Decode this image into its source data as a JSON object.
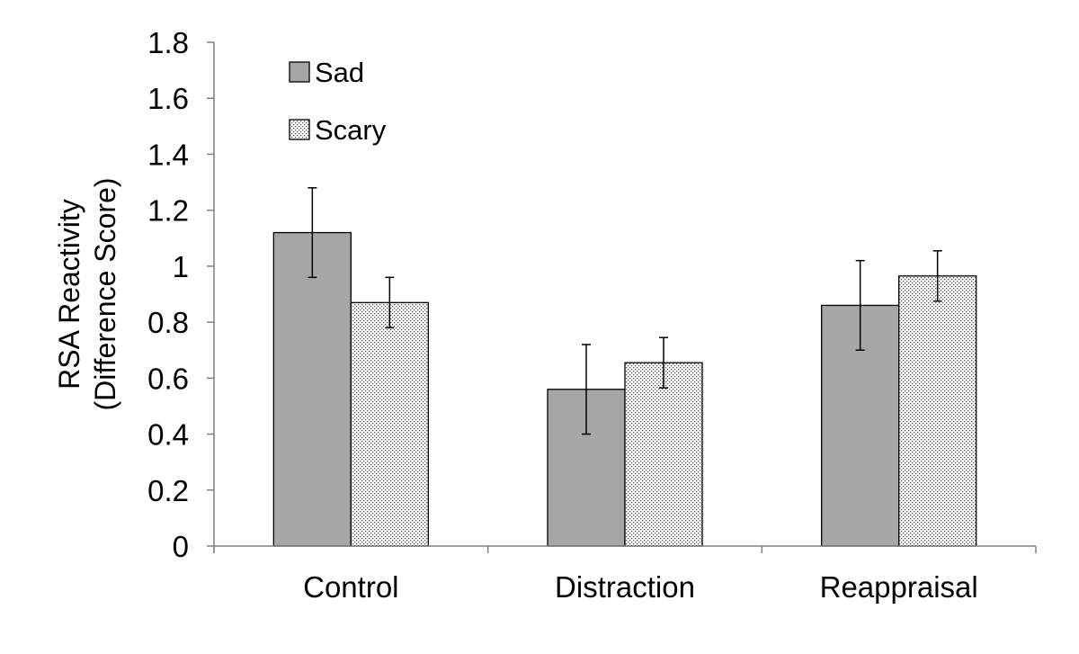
{
  "chart_data": {
    "type": "bar",
    "title": "",
    "xlabel": "",
    "ylabel_lines": [
      "RSA Reactivity",
      "(Difference Score)"
    ],
    "ylim": [
      0,
      1.8
    ],
    "ytick_step": 0.2,
    "ytick_labels": [
      "0",
      "0.2",
      "0.4",
      "0.6",
      "0.8",
      "1",
      "1.2",
      "1.4",
      "1.6",
      "1.8"
    ],
    "categories": [
      "Control",
      "Distraction",
      "Reappraisal"
    ],
    "series": [
      {
        "name": "Sad",
        "values": [
          1.12,
          0.56,
          0.86
        ],
        "errors": [
          0.16,
          0.16,
          0.16
        ],
        "color": "#a6a6a6",
        "fill": "solid"
      },
      {
        "name": "Scary",
        "values": [
          0.87,
          0.655,
          0.965
        ],
        "errors": [
          0.09,
          0.09,
          0.09
        ],
        "color": "#ffffff",
        "fill": "dotted"
      }
    ],
    "legend_position": "top-left",
    "grid": false
  }
}
